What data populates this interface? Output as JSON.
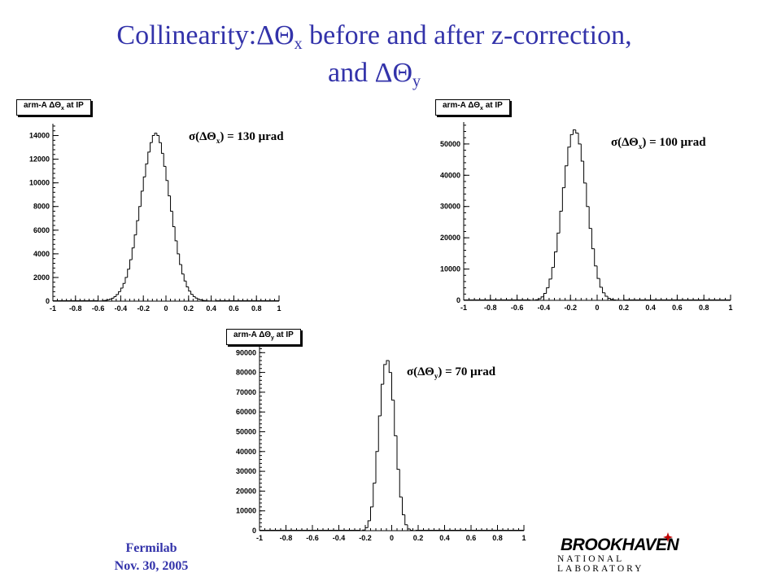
{
  "slide": {
    "title_line1_pre": "Collinearity:ΔΘ",
    "title_line1_sub": "x",
    "title_line1_post": " before and after z-correction,",
    "title_line2_pre": "and ΔΘ",
    "title_line2_sub": "y",
    "footer_org": "Fermilab",
    "footer_date": "Nov. 30, 2005",
    "logo_main": "BROOKHAVEN",
    "logo_sub": "NATIONAL LABORATORY"
  },
  "chart_data": [
    {
      "type": "histogram",
      "title_pre": "arm-A ΔΘ",
      "title_sub": "x",
      "title_post": " at IP",
      "annotation_pre": "σ(ΔΘ",
      "annotation_sub": "x",
      "annotation_post": ") = 130 μrad",
      "xlim": [
        -1,
        1
      ],
      "ylim": [
        0,
        15000
      ],
      "x_ticks": [
        -1,
        -0.8,
        -0.6,
        -0.4,
        -0.2,
        0,
        0.2,
        0.4,
        0.6,
        0.8,
        1
      ],
      "y_ticks": [
        0,
        2000,
        4000,
        6000,
        8000,
        10000,
        12000,
        14000
      ],
      "bin_width": 0.02,
      "bins_x_start": -0.6,
      "counts": [
        10,
        20,
        40,
        70,
        110,
        170,
        250,
        380,
        560,
        800,
        1100,
        1500,
        2000,
        2700,
        3500,
        4500,
        5600,
        6800,
        8000,
        9300,
        10500,
        11600,
        12600,
        13400,
        14000,
        14200,
        14000,
        13400,
        12500,
        11400,
        10200,
        8900,
        7600,
        6300,
        5100,
        4000,
        3100,
        2300,
        1700,
        1200,
        850,
        580,
        390,
        260,
        170,
        110,
        70,
        45,
        28,
        17,
        10,
        6
      ]
    },
    {
      "type": "histogram",
      "title_pre": "arm-A ΔΘ",
      "title_sub": "x",
      "title_post": " at IP",
      "annotation_pre": "σ(ΔΘ",
      "annotation_sub": "x",
      "annotation_post": ") = 100 μrad",
      "xlim": [
        -1,
        1
      ],
      "ylim": [
        0,
        57000
      ],
      "x_ticks": [
        -1,
        -0.8,
        -0.6,
        -0.4,
        -0.2,
        0,
        0.2,
        0.4,
        0.6,
        0.8,
        1
      ],
      "y_ticks": [
        0,
        10000,
        20000,
        30000,
        40000,
        50000
      ],
      "bin_width": 0.02,
      "bins_x_start": -0.5,
      "counts": [
        30,
        80,
        200,
        500,
        1100,
        2200,
        4000,
        6800,
        10500,
        15500,
        21500,
        28500,
        36000,
        43000,
        49000,
        53000,
        54500,
        53500,
        50000,
        44500,
        37500,
        30000,
        23000,
        16500,
        11000,
        7000,
        4200,
        2400,
        1300,
        650,
        300,
        140,
        60,
        25,
        10
      ]
    },
    {
      "type": "histogram",
      "title_pre": "arm-A ΔΘ",
      "title_sub": "y",
      "title_post": " at IP",
      "annotation_pre": "σ(ΔΘ",
      "annotation_sub": "y",
      "annotation_post": ") = 70 μrad",
      "xlim": [
        -1,
        1
      ],
      "ylim": [
        0,
        93000
      ],
      "x_ticks": [
        -1,
        -0.8,
        -0.6,
        -0.4,
        -0.2,
        0,
        0.2,
        0.4,
        0.6,
        0.8,
        1
      ],
      "y_ticks": [
        0,
        10000,
        20000,
        30000,
        40000,
        50000,
        60000,
        70000,
        80000,
        90000
      ],
      "bin_width": 0.02,
      "bins_x_start": -0.24,
      "counts": [
        50,
        300,
        1500,
        5000,
        12000,
        24000,
        40000,
        58000,
        74000,
        84000,
        86000,
        80000,
        66000,
        48000,
        31000,
        17000,
        8000,
        3000,
        900,
        200,
        40
      ]
    }
  ]
}
